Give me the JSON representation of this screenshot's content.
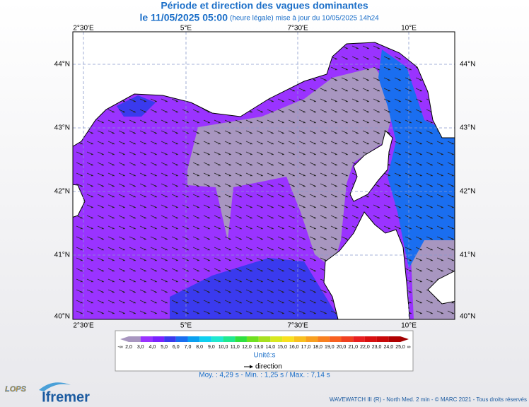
{
  "header": {
    "title": "Période et direction des vagues dominantes",
    "date": "le 11/05/2025 05:00",
    "note": "(heure légale) mise à jour du 10/05/2025 14h24"
  },
  "map": {
    "lon_labels": [
      "2°30'E",
      "5°E",
      "7°30'E",
      "10°E"
    ],
    "lat_labels": [
      "44°N",
      "43°N",
      "42°N",
      "41°N",
      "40°N"
    ]
  },
  "legend": {
    "low": "-∞",
    "high": "∞",
    "labels": [
      "2,0",
      "3,0",
      "4,0",
      "5,0",
      "6,0",
      "7,0",
      "8,0",
      "9,0",
      "10,0",
      "11,0",
      "12,0",
      "13,0",
      "14,0",
      "15,0",
      "16,0",
      "17,0",
      "18,0",
      "19,0",
      "20,0",
      "21,0",
      "22,0",
      "23,0",
      "24,0",
      "25,0"
    ],
    "colors": [
      "#a896c0",
      "#a896c0",
      "#9a33ff",
      "#7a22ff",
      "#3a3aee",
      "#1a6ef0",
      "#0aa0f0",
      "#10d0f0",
      "#20e8d0",
      "#20e890",
      "#30e040",
      "#70e020",
      "#a8e020",
      "#d8e820",
      "#f8e020",
      "#f8c020",
      "#f8a020",
      "#f88020",
      "#f86020",
      "#f04020",
      "#e82020",
      "#d81010",
      "#c80808",
      "#b00000",
      "#a00000"
    ],
    "unit": "Unité:s",
    "direction": "direction",
    "stats": "Moy. : 4,29 s  -  Min. : 1,25 s / Max. : 7,14 s"
  },
  "footer": {
    "credit": "WAVEWATCH III (R) - North Med. 2 min - © MARC 2021 - Tous droits réservés",
    "logo1": "LOPS",
    "logo2": "Ifremer"
  }
}
